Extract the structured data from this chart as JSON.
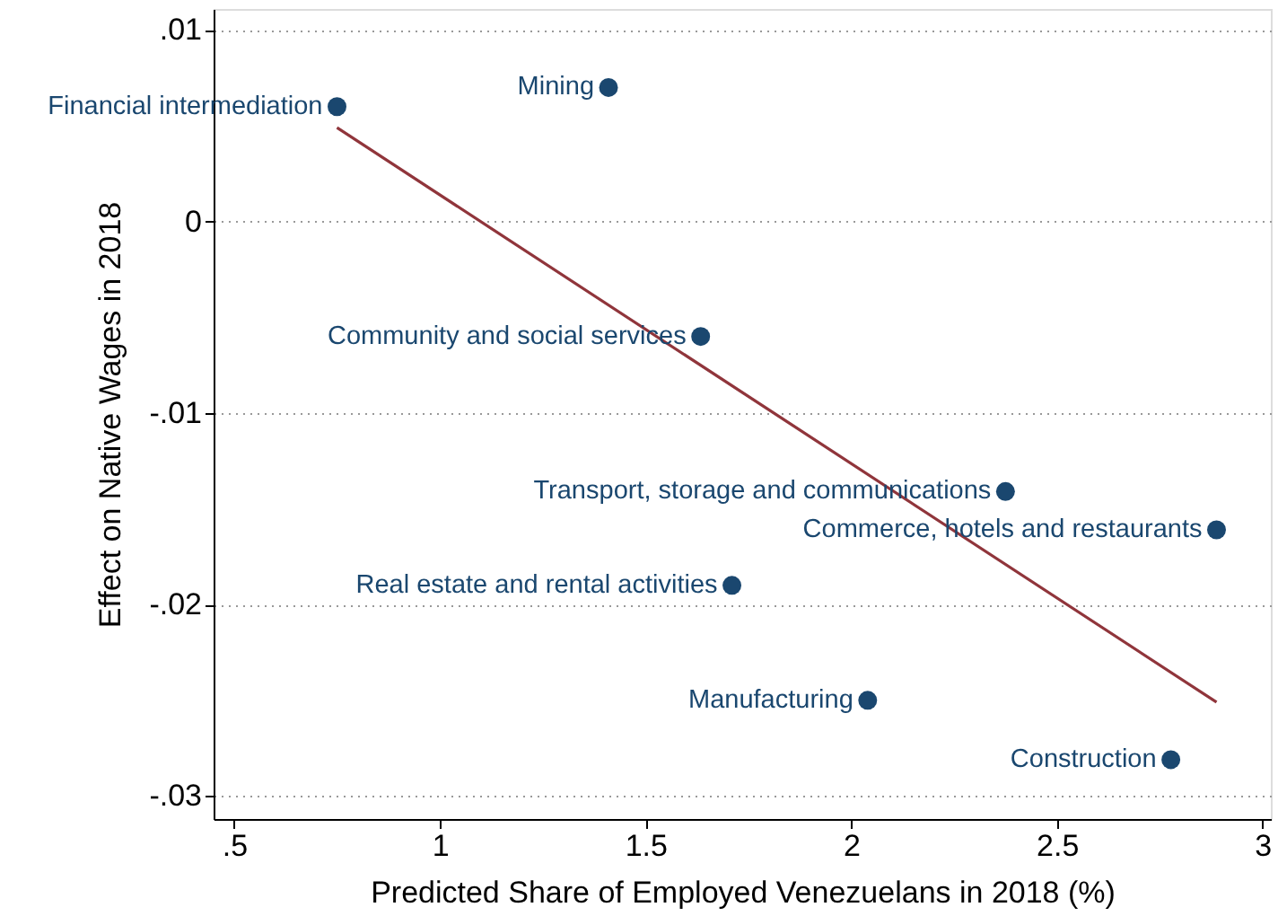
{
  "chart_data": {
    "type": "scatter",
    "xlabel": "Predicted Share of Employed Venezuelans in 2018 (%)",
    "ylabel": "Effect on Native Wages in 2018",
    "series": [
      {
        "marker": "circle",
        "color": "#1a476f",
        "x": [
          0.75,
          1.41,
          1.634,
          2.375,
          2.888,
          1.71,
          2.04,
          2.777
        ],
        "values": [
          0.006,
          0.007,
          -0.006,
          -0.0141,
          -0.0161,
          -0.019,
          -0.025,
          -0.0281
        ]
      },
      {
        "type": "line",
        "marker": "none",
        "line_style": "solid",
        "color": "#90353b",
        "x": [
          0.75,
          2.888
        ],
        "values": [
          0.0049,
          -0.0251
        ]
      }
    ],
    "annotations": [
      {
        "text": "Financial intermediation",
        "x": 0.75,
        "y": 0.006
      },
      {
        "text": "Mining",
        "x": 1.41,
        "y": 0.007
      },
      {
        "text": "Community and social services",
        "x": 1.634,
        "y": -0.006
      },
      {
        "text": "Transport, storage and communications",
        "x": 2.375,
        "y": -0.0141
      },
      {
        "text": "Commerce, hotels and restaurants",
        "x": 2.888,
        "y": -0.0161
      },
      {
        "text": "Real estate and rental activities",
        "x": 1.71,
        "y": -0.019
      },
      {
        "text": "Manufacturing",
        "x": 2.04,
        "y": -0.025
      },
      {
        "text": "Construction",
        "x": 2.777,
        "y": -0.0281
      }
    ],
    "xlim": [
      0.45,
      3.02
    ],
    "ylim": [
      -0.0312,
      0.0111
    ],
    "xticks": [
      {
        "value": 0.5,
        "label": ".5"
      },
      1,
      1.5,
      2,
      2.5,
      3
    ],
    "yticks": [
      {
        "value": -0.03,
        "label": "-.03"
      },
      {
        "value": -0.02,
        "label": "-.02"
      },
      {
        "value": -0.01,
        "label": "-.01"
      },
      0,
      {
        "value": 0.01,
        "label": ".01"
      }
    ],
    "grid": "y"
  }
}
